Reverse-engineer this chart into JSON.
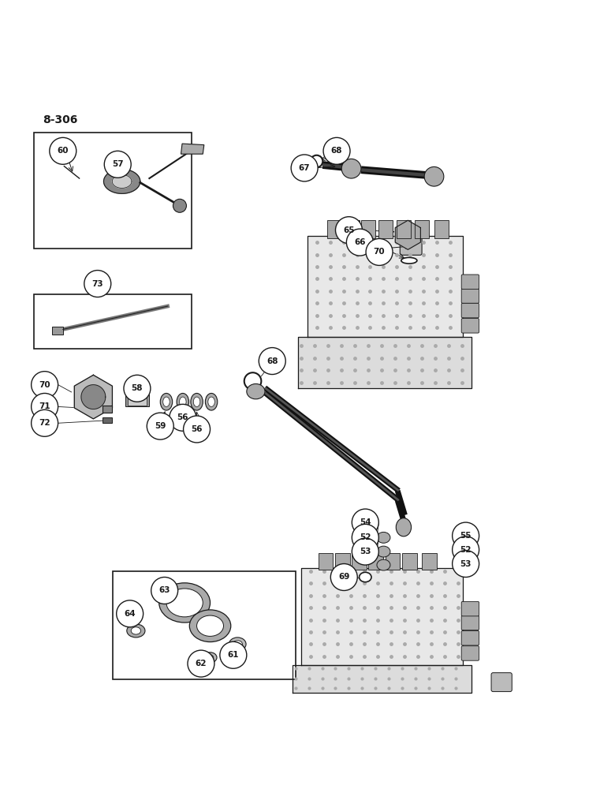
{
  "page_label": "8-306",
  "bg_color": "#ffffff",
  "line_color": "#1a1a1a",
  "figsize": [
    7.8,
    10.0
  ],
  "dpi": 100
}
